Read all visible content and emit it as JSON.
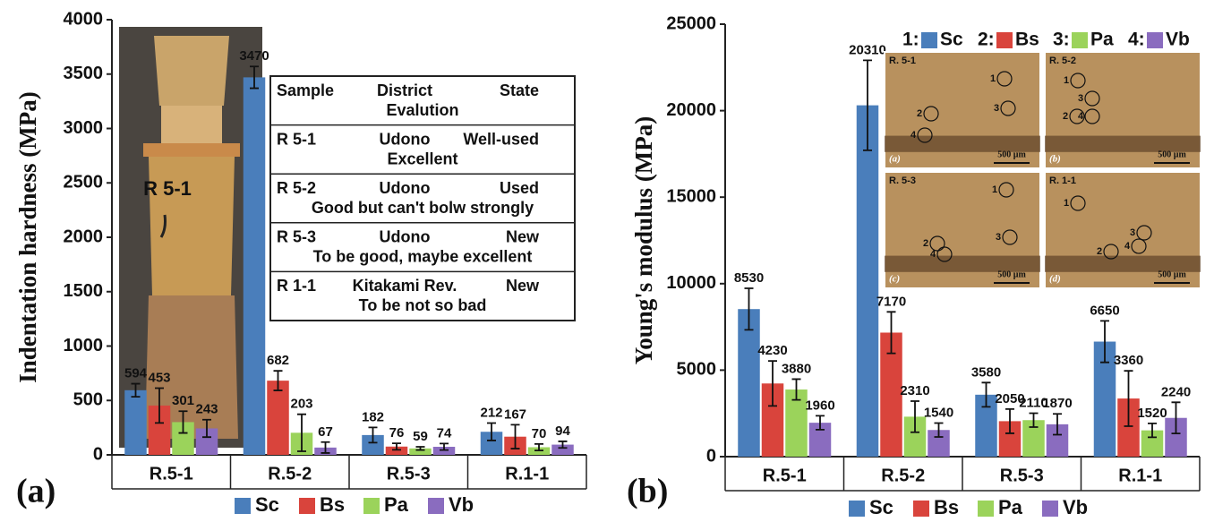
{
  "chart_data": [
    {
      "type": "bar",
      "y_label": "Indentation hardness (MPa)",
      "panel_label": "(a)",
      "categories": [
        "R.5-1",
        "R.5-2",
        "R.5-3",
        "R.1-1"
      ],
      "ylim": [
        0,
        4000
      ],
      "yticks": [
        0,
        500,
        1000,
        1500,
        2000,
        2500,
        3000,
        3500,
        4000
      ],
      "series": [
        {
          "name": "Sc",
          "color": "#4a7ebb",
          "values": [
            594,
            3470,
            182,
            212
          ],
          "errors": [
            60,
            100,
            70,
            80
          ]
        },
        {
          "name": "Bs",
          "color": "#d9443c",
          "values": [
            453,
            682,
            76,
            167
          ],
          "errors": [
            160,
            90,
            30,
            110
          ]
        },
        {
          "name": "Pa",
          "color": "#9bd35b",
          "values": [
            301,
            203,
            59,
            70
          ],
          "errors": [
            100,
            170,
            15,
            30
          ]
        },
        {
          "name": "Vb",
          "color": "#8a6cbf",
          "values": [
            243,
            67,
            74,
            94
          ],
          "errors": [
            80,
            50,
            30,
            30
          ]
        }
      ],
      "photo_label": "R 5-1",
      "inset_table": {
        "header": [
          "Sample",
          "District",
          "State",
          "Evalution"
        ],
        "rows": [
          [
            "R 5-1",
            "Udono",
            "Well-used",
            "Excellent"
          ],
          [
            "R 5-2",
            "Udono",
            "Used",
            "Good but can't bolw strongly"
          ],
          [
            "R 5-3",
            "Udono",
            "New",
            "To be good, maybe excellent"
          ],
          [
            "R 1-1",
            "Kitakami Rev.",
            "New",
            "To be not so bad"
          ]
        ]
      }
    },
    {
      "type": "bar",
      "y_label": "Young's modulus (MPa)",
      "panel_label": "(b)",
      "categories": [
        "R.5-1",
        "R.5-2",
        "R.5-3",
        "R.1-1"
      ],
      "ylim": [
        0,
        25000
      ],
      "yticks": [
        0,
        5000,
        10000,
        15000,
        20000,
        25000
      ],
      "series": [
        {
          "name": "Sc",
          "color": "#4a7ebb",
          "values": [
            8530,
            20310,
            3580,
            6650
          ],
          "errors": [
            1200,
            2600,
            700,
            1200
          ]
        },
        {
          "name": "Bs",
          "color": "#d9443c",
          "values": [
            4230,
            7170,
            2050,
            3360
          ],
          "errors": [
            1300,
            1200,
            700,
            1600
          ]
        },
        {
          "name": "Pa",
          "color": "#9bd35b",
          "values": [
            3880,
            2310,
            2110,
            1520
          ],
          "errors": [
            600,
            900,
            400,
            400
          ]
        },
        {
          "name": "Vb",
          "color": "#8a6cbf",
          "values": [
            1960,
            1540,
            1870,
            2240
          ],
          "errors": [
            400,
            400,
            600,
            900
          ]
        }
      ],
      "inset_legend_prefixes": [
        "1:",
        "2:",
        "3:",
        "4:"
      ],
      "micrographs": [
        {
          "sample": "R. 5-1",
          "letter": "(a)",
          "scale": "500 µm",
          "markers": [
            "1",
            "2",
            "3",
            "4"
          ]
        },
        {
          "sample": "R. 5-2",
          "letter": "(b)",
          "scale": "500 µm",
          "markers": [
            "1",
            "3",
            "2",
            "4"
          ]
        },
        {
          "sample": "R. 5-3",
          "letter": "(c)",
          "scale": "500 µm",
          "markers": [
            "1",
            "2",
            "4",
            "3"
          ]
        },
        {
          "sample": "R. 1-1",
          "letter": "(d)",
          "scale": "500 µm",
          "markers": [
            "1",
            "3",
            "4",
            "2"
          ]
        }
      ]
    }
  ]
}
